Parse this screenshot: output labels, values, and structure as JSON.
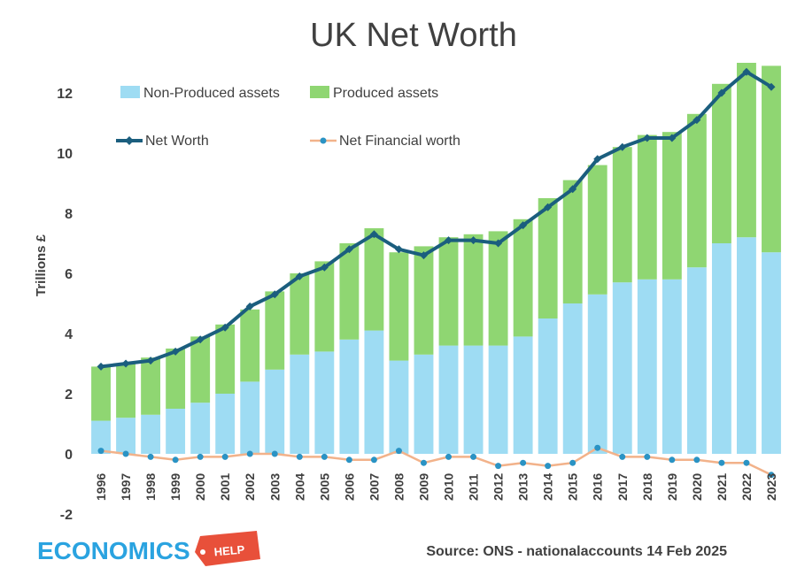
{
  "chart_data": {
    "type": "bar",
    "title": "UK Net Worth",
    "ylabel": "Trillions £",
    "ylim": [
      -2,
      13
    ],
    "yticks": [
      -2,
      0,
      2,
      4,
      6,
      8,
      10,
      12
    ],
    "ytick_labels": [
      "-2",
      "0",
      "2",
      "4",
      "6",
      "8",
      "10",
      "12"
    ],
    "grid": false,
    "legend_position": "top-left",
    "categories": [
      "1996",
      "1997",
      "1998",
      "1999",
      "2000",
      "2001",
      "2002",
      "2003",
      "2004",
      "2005",
      "2006",
      "2007",
      "2008",
      "2009",
      "2010",
      "2011",
      "2012",
      "2013",
      "2014",
      "2015",
      "2016",
      "2017",
      "2018",
      "2019",
      "2020",
      "2021",
      "2022",
      "2023"
    ],
    "series": [
      {
        "name": "Non-Produced assets",
        "kind": "stacked-bar",
        "color": "#9edcf3",
        "values": [
          1.1,
          1.2,
          1.3,
          1.5,
          1.7,
          2.0,
          2.4,
          2.8,
          3.3,
          3.4,
          3.8,
          4.1,
          3.1,
          3.3,
          3.6,
          3.6,
          3.6,
          3.9,
          4.5,
          5.0,
          5.3,
          5.7,
          5.8,
          5.8,
          6.2,
          7.0,
          7.2,
          6.7
        ]
      },
      {
        "name": "Produced assets",
        "kind": "stacked-bar",
        "color": "#8fd672",
        "values": [
          1.8,
          1.8,
          1.9,
          2.0,
          2.2,
          2.3,
          2.4,
          2.6,
          2.7,
          3.0,
          3.2,
          3.4,
          3.6,
          3.6,
          3.6,
          3.7,
          3.8,
          3.9,
          4.0,
          4.1,
          4.3,
          4.5,
          4.8,
          4.9,
          5.1,
          5.3,
          5.8,
          6.2
        ]
      },
      {
        "name": "Net Worth",
        "kind": "line",
        "color": "#1b5e7e",
        "values": [
          2.9,
          3.0,
          3.1,
          3.4,
          3.8,
          4.2,
          4.9,
          5.3,
          5.9,
          6.2,
          6.8,
          7.3,
          6.8,
          6.6,
          7.1,
          7.1,
          7.0,
          7.6,
          8.2,
          8.8,
          9.8,
          10.2,
          10.5,
          10.5,
          11.1,
          12.0,
          12.7,
          12.2
        ]
      },
      {
        "name": "Net Financial worth",
        "kind": "line",
        "color": "#f2b28a",
        "marker_color": "#2a93c4",
        "values": [
          0.1,
          0.0,
          -0.1,
          -0.2,
          -0.1,
          -0.1,
          0.0,
          0.0,
          -0.1,
          -0.1,
          -0.2,
          -0.2,
          0.1,
          -0.3,
          -0.1,
          -0.1,
          -0.4,
          -0.3,
          -0.4,
          -0.3,
          0.2,
          -0.1,
          -0.1,
          -0.2,
          -0.2,
          -0.3,
          -0.3,
          -0.7
        ]
      }
    ]
  },
  "source": "Source: ONS - nationalaccounts 14 Feb 2025",
  "logo": {
    "text": "ECONOMICS",
    "tag": "HELP"
  }
}
